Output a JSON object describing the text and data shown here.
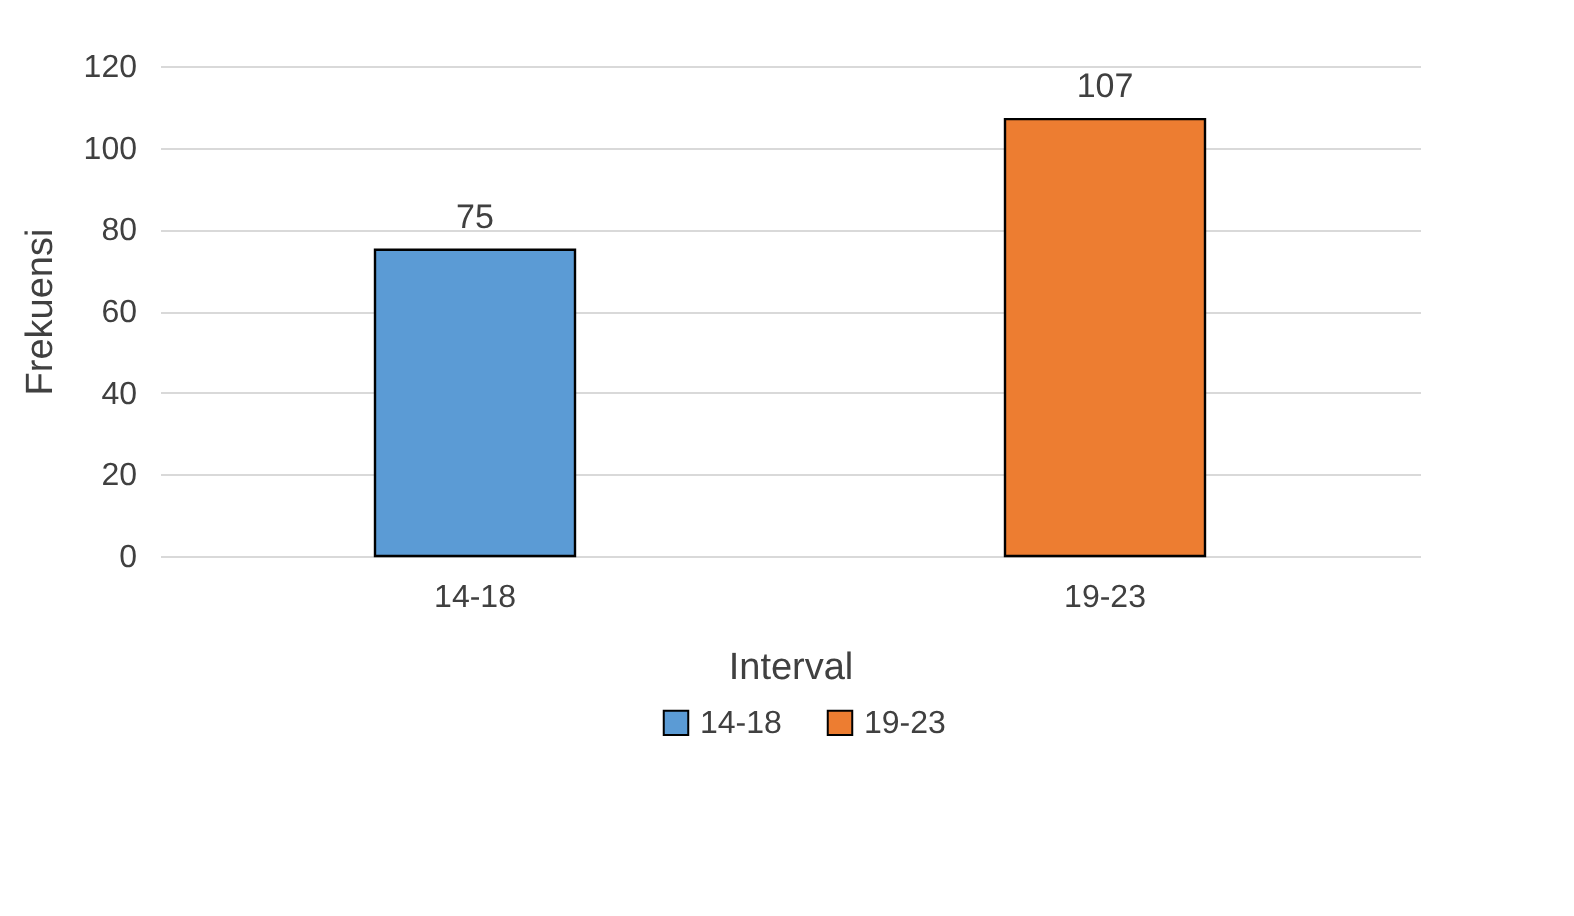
{
  "chart_data": {
    "type": "bar",
    "stacked": true,
    "categories": [
      "14-18",
      "19-23"
    ],
    "series": [
      {
        "name": "14-18",
        "color": "#5b9bd5",
        "values": [
          75,
          null
        ]
      },
      {
        "name": "19-23",
        "color": "#ed7d31",
        "values": [
          null,
          107
        ]
      }
    ],
    "xlabel": "Interval",
    "ylabel": "Frekuensi",
    "ylim": [
      0,
      120
    ],
    "yticks": [
      0,
      20,
      40,
      60,
      80,
      100,
      120
    ],
    "grid": "y",
    "legend": "bottom",
    "data_labels": true
  }
}
